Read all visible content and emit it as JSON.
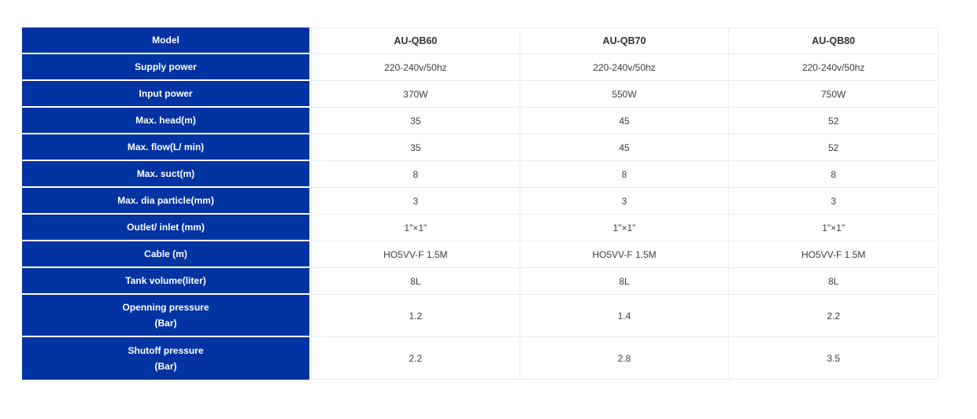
{
  "colors": {
    "header_bg": "#0233a3",
    "header_text": "#ffffff",
    "value_text": "#3d3d3d",
    "model_text": "#333333",
    "border": "#ececec",
    "page_bg": "#ffffff"
  },
  "table": {
    "corner_label": "Model",
    "models": [
      "AU-QB60",
      "AU-QB70",
      "AU-QB80"
    ],
    "rows": [
      {
        "label": "Supply power",
        "values": [
          "220-240v/50hz",
          "220-240v/50hz",
          "220-240v/50hz"
        ]
      },
      {
        "label": "Input power",
        "values": [
          "370W",
          "550W",
          "750W"
        ]
      },
      {
        "label": "Max. head(m)",
        "values": [
          "35",
          "45",
          "52"
        ]
      },
      {
        "label": "Max. flow(L/ min)",
        "values": [
          "35",
          "45",
          "52"
        ]
      },
      {
        "label": "Max. suct(m)",
        "values": [
          "8",
          "8",
          "8"
        ]
      },
      {
        "label": "Max. dia particle(mm)",
        "values": [
          "3",
          "3",
          "3"
        ]
      },
      {
        "label": "Outlet/ inlet (mm)",
        "values": [
          "1\"×1\"",
          "1\"×1\"",
          "1\"×1\""
        ]
      },
      {
        "label": "Cable (m)",
        "values": [
          "HO5VV-F 1.5M",
          "HO5VV-F 1.5M",
          "HO5VV-F 1.5M"
        ]
      },
      {
        "label": "Tank volume(liter)",
        "values": [
          "8L",
          "8L",
          "8L"
        ]
      },
      {
        "label": "Openning pressure",
        "label_line2": "(Bar)",
        "values": [
          "1.2",
          "1.4",
          "2.2"
        ]
      },
      {
        "label": "Shutoff pressure",
        "label_line2": "(Bar)",
        "values": [
          "2.2",
          "2.8",
          "3.5"
        ]
      }
    ]
  }
}
